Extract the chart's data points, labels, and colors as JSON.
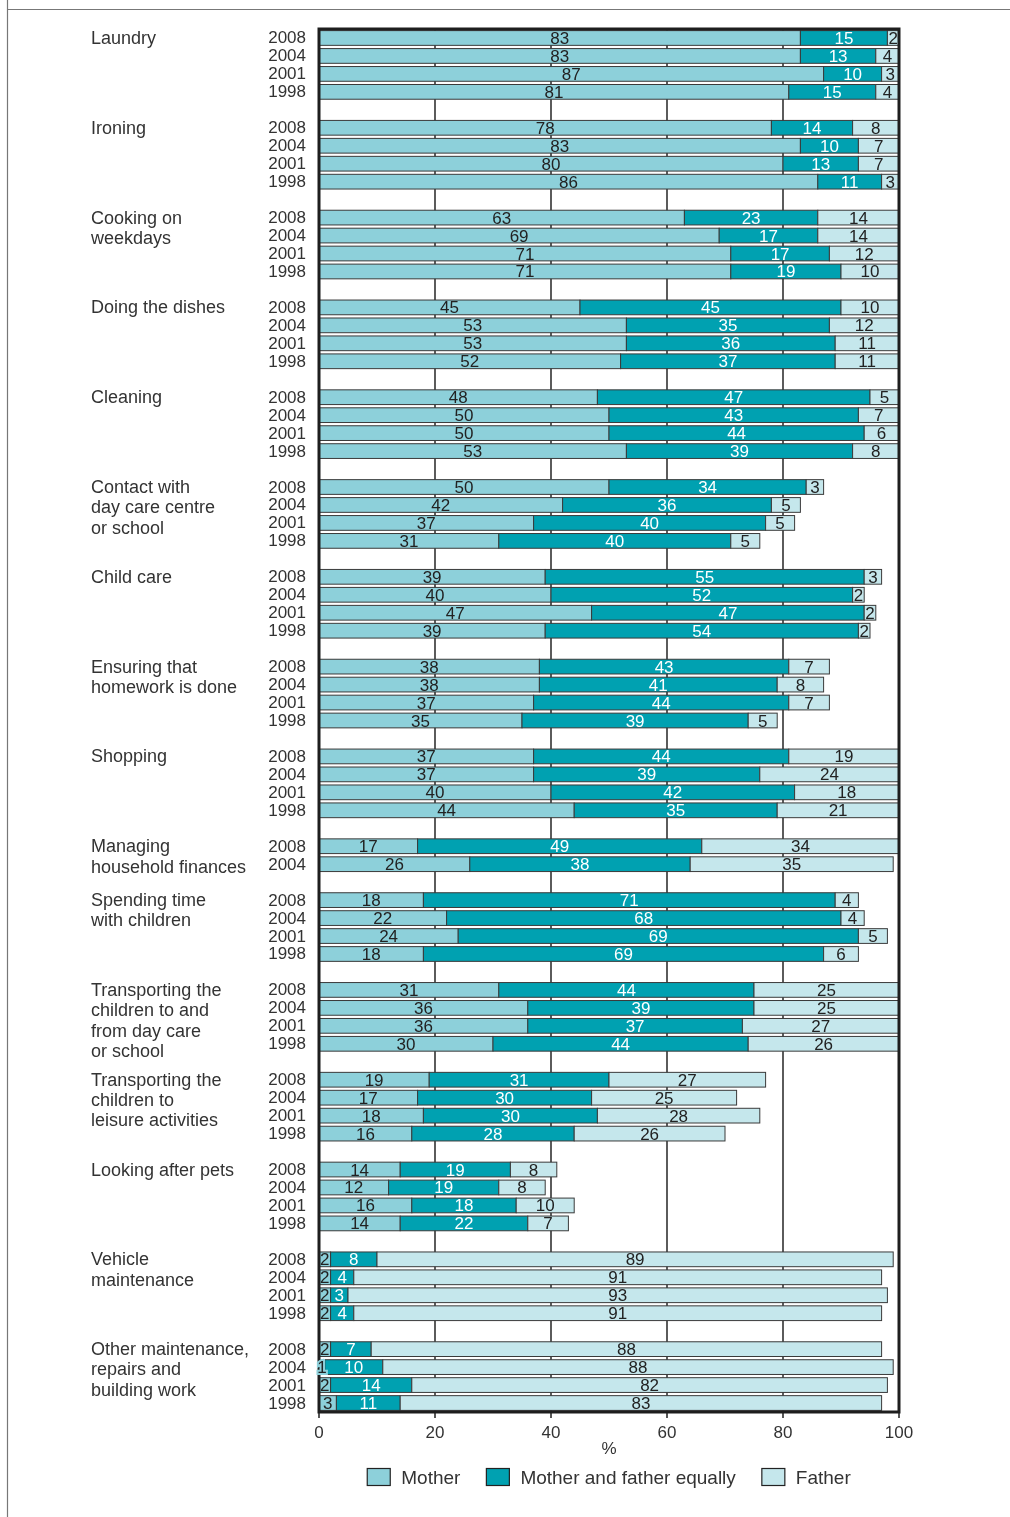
{
  "chart_data": {
    "type": "bar",
    "orientation": "horizontal",
    "stacked": true,
    "categories": [
      "2008",
      "2004",
      "2001",
      "1998",
      null,
      "2008",
      "2004",
      "2001",
      "1998",
      null,
      "2008",
      "2004",
      "2001",
      "1998",
      null,
      "2008",
      "2004",
      "2001",
      "1998",
      null,
      "2008",
      "2004",
      "2001",
      "1998",
      null,
      "2008",
      "2004",
      "2001",
      "1998",
      null,
      "2008",
      "2004",
      "2001",
      "1998",
      null,
      "2008",
      "2004",
      "2001",
      "1998",
      null,
      "2008",
      "2004",
      "2001",
      "1998",
      null,
      "2008",
      "2004",
      null,
      "2008",
      "2004",
      "2001",
      "1998",
      null,
      "2008",
      "2004",
      "2001",
      "1998",
      null,
      "2008",
      "2004",
      "2001",
      "1998",
      null,
      "2008",
      "2004",
      "2001",
      "1998",
      null,
      "2008",
      "2004",
      "2001",
      "1998",
      null,
      "2008",
      "2004",
      "2001",
      "1998"
    ],
    "series": [
      {
        "name": "Mother",
        "color": "#8dd0da",
        "values": [
          83,
          83,
          87,
          81,
          null,
          78,
          83,
          80,
          86,
          null,
          63,
          69,
          71,
          71,
          null,
          45,
          53,
          53,
          52,
          null,
          48,
          50,
          50,
          53,
          null,
          50,
          42,
          37,
          31,
          null,
          39,
          40,
          47,
          39,
          null,
          38,
          38,
          37,
          35,
          null,
          37,
          37,
          40,
          44,
          null,
          17,
          26,
          null,
          18,
          22,
          24,
          18,
          null,
          31,
          36,
          36,
          30,
          null,
          19,
          17,
          18,
          16,
          null,
          14,
          12,
          16,
          14,
          null,
          2,
          2,
          2,
          2,
          null,
          2,
          1,
          2,
          3
        ]
      },
      {
        "name": "Mother and father equally",
        "color": "#00a1b1",
        "values": [
          15,
          13,
          10,
          15,
          null,
          14,
          10,
          13,
          11,
          null,
          23,
          17,
          17,
          19,
          null,
          45,
          35,
          36,
          37,
          null,
          47,
          43,
          44,
          39,
          null,
          34,
          36,
          40,
          40,
          null,
          55,
          52,
          47,
          54,
          null,
          43,
          41,
          44,
          39,
          null,
          44,
          39,
          42,
          35,
          null,
          49,
          38,
          null,
          71,
          68,
          69,
          69,
          null,
          44,
          39,
          37,
          44,
          null,
          31,
          30,
          30,
          28,
          null,
          19,
          19,
          18,
          22,
          null,
          8,
          4,
          3,
          4,
          null,
          7,
          10,
          14,
          11
        ]
      },
      {
        "name": "Father",
        "color": "#c5e7ec",
        "values": [
          2,
          4,
          3,
          4,
          null,
          8,
          7,
          7,
          3,
          null,
          14,
          14,
          12,
          10,
          null,
          10,
          12,
          11,
          11,
          null,
          5,
          7,
          6,
          8,
          null,
          3,
          5,
          5,
          5,
          null,
          3,
          2,
          2,
          2,
          null,
          7,
          8,
          7,
          5,
          null,
          19,
          24,
          18,
          21,
          null,
          34,
          35,
          null,
          4,
          4,
          5,
          6,
          null,
          25,
          25,
          27,
          26,
          null,
          27,
          25,
          28,
          26,
          null,
          8,
          8,
          10,
          7,
          null,
          89,
          91,
          93,
          91,
          null,
          88,
          88,
          82,
          83
        ]
      }
    ],
    "xlim": [
      0,
      100
    ],
    "xticks": [
      0,
      20,
      40,
      60,
      80,
      100
    ],
    "xlabel": "%",
    "grid": "x",
    "legend": "bottom",
    "data_labels": true,
    "annotations": [
      "Laundry",
      "Ironing",
      "Cooking on\nweekdays",
      "Doing the dishes",
      "Cleaning",
      "Contact with\nday care centre\nor school",
      "Child care",
      "Ensuring that\nhomework is done",
      "Shopping",
      "Managing\nhousehold finances",
      "Spending time\nwith children",
      "Transporting the\nchildren to and\nfrom day care\nor school",
      "Transporting the\nchildren to\nleisure activities",
      "Looking after pets",
      "Vehicle\nmaintenance",
      "Other maintenance,\nrepairs and\nbuilding work"
    ]
  }
}
